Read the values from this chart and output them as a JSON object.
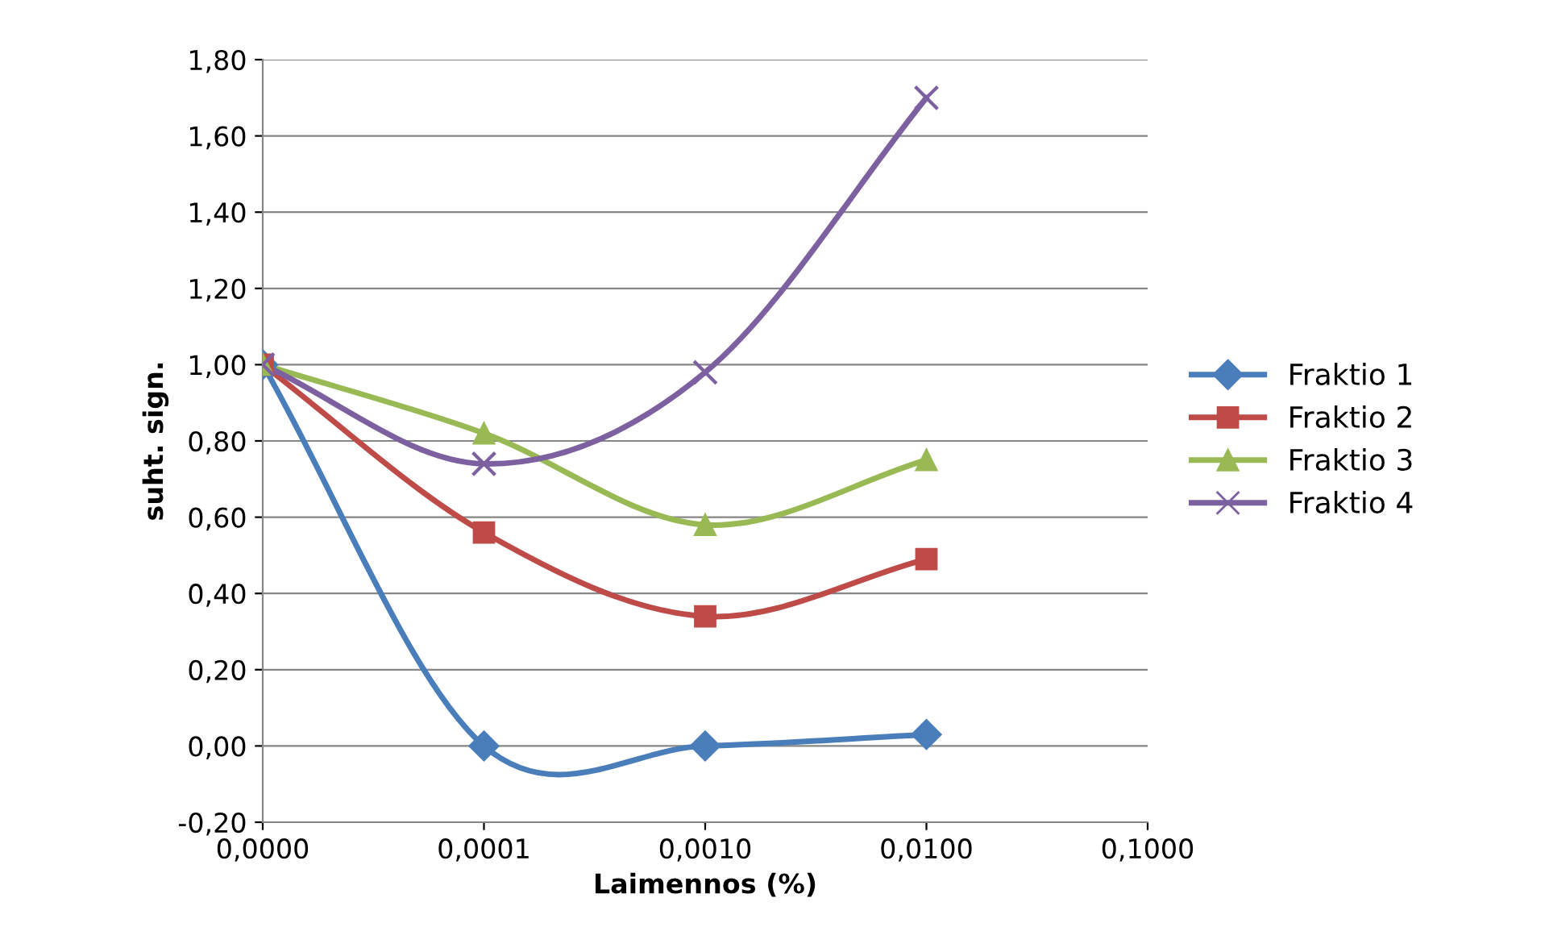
{
  "chart_data": {
    "type": "line",
    "xlabel": "Laimennos (%)",
    "ylabel": "suht. sign.",
    "categories": [
      "0,0000",
      "0,0001",
      "0,0010",
      "0,0100",
      "0,1000"
    ],
    "series": [
      {
        "name": "Fraktio 1",
        "color": "#4a7ebb",
        "marker": "diamond",
        "values": [
          1.0,
          0.0,
          0.0,
          0.03,
          null
        ]
      },
      {
        "name": "Fraktio 2",
        "color": "#be4b48",
        "marker": "square",
        "values": [
          1.0,
          0.56,
          0.34,
          0.49,
          null
        ]
      },
      {
        "name": "Fraktio 3",
        "color": "#98b954",
        "marker": "triangle",
        "values": [
          1.0,
          0.82,
          0.58,
          0.75,
          null
        ]
      },
      {
        "name": "Fraktio 4",
        "color": "#7d60a0",
        "marker": "cross",
        "values": [
          1.0,
          0.74,
          0.98,
          1.7,
          null
        ]
      }
    ],
    "ylim": [
      -0.2,
      1.8
    ],
    "yticks": [
      {
        "value": -0.2,
        "label": "-0,20"
      },
      {
        "value": 0,
        "label": "0,00"
      },
      {
        "value": 0.2,
        "label": "0,20"
      },
      {
        "value": 0.4,
        "label": "0,40"
      },
      {
        "value": 0.6,
        "label": "0,60"
      },
      {
        "value": 0.8,
        "label": "0,80"
      },
      {
        "value": 1.0,
        "label": "1,00"
      },
      {
        "value": 1.2,
        "label": "1,20"
      },
      {
        "value": 1.4,
        "label": "1,40"
      },
      {
        "value": 1.6,
        "label": "1,60"
      },
      {
        "value": 1.8,
        "label": "1,80"
      }
    ],
    "grid": "y",
    "legend": "right",
    "line_style": "solid"
  }
}
